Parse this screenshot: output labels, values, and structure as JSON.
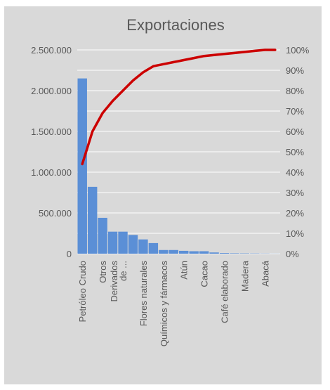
{
  "chart_data": {
    "type": "bar",
    "title": "Exportaciones",
    "categories": [
      "Petróleo Crudo",
      "",
      "Otros",
      "",
      "de ...",
      "",
      "Flores naturales",
      "",
      "Químicos y fármacos",
      "",
      "Atún",
      "",
      "Cacao",
      "",
      "Café elaborado",
      "",
      "Madera",
      "",
      "Abacá",
      ""
    ],
    "category_second_line": [
      "",
      "",
      "",
      "",
      "Derivados",
      "",
      "",
      "",
      "",
      "",
      "",
      "",
      "",
      "",
      "",
      "",
      "",
      "",
      "",
      ""
    ],
    "series": [
      {
        "kind": "bar",
        "axis": "left",
        "values": [
          2150000,
          820000,
          440000,
          270000,
          270000,
          230000,
          175000,
          130000,
          45000,
          45000,
          35000,
          30000,
          30000,
          15000,
          8000,
          5000,
          4000,
          3000,
          2000,
          1000
        ]
      },
      {
        "kind": "line",
        "axis": "right",
        "values": [
          44,
          60,
          69,
          75,
          80,
          85,
          89,
          92,
          93,
          94,
          95,
          96,
          97,
          97.5,
          98,
          98.5,
          99,
          99.5,
          100,
          100
        ]
      }
    ],
    "y_left": {
      "ylim": [
        0,
        2500000
      ],
      "ticks": [
        0,
        500000,
        1000000,
        1500000,
        2000000,
        2500000
      ],
      "tick_labels": [
        "0",
        "500.000",
        "1.000.000",
        "1.500.000",
        "2.000.000",
        "2.500.000"
      ]
    },
    "y_right": {
      "ylim": [
        0,
        100
      ],
      "ticks": [
        0,
        10,
        20,
        30,
        40,
        50,
        60,
        70,
        80,
        90,
        100
      ],
      "tick_labels": [
        "0%",
        "10%",
        "20%",
        "30%",
        "40%",
        "50%",
        "60%",
        "70%",
        "80%",
        "90%",
        "100%"
      ]
    },
    "grid": true,
    "colors": {
      "background": "#d9d9d9",
      "bar": "#5b8fd6",
      "line": "#cc0000",
      "grid": "#ffffff",
      "text": "#595959"
    }
  }
}
